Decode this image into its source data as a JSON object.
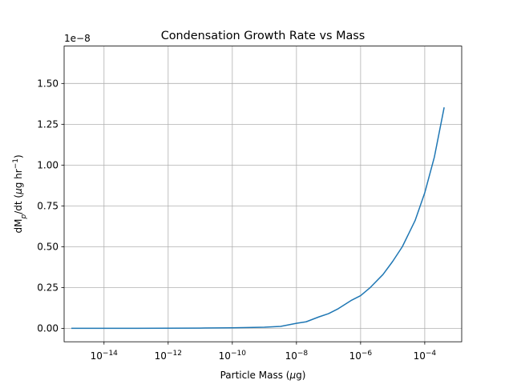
{
  "chart_data": {
    "type": "line",
    "title": "Condensation Growth Rate vs Mass",
    "xlabel": "Particle Mass (μg)",
    "ylabel": "dMp/dt (μg hr−1)",
    "x_scale": "log",
    "y_offset_label": "1e−8",
    "y_multiplier": 1e-08,
    "xlim": [
      5.7e-16,
      0.00142
    ],
    "ylim": [
      -0.0823,
      1.729
    ],
    "grid": true,
    "x_ticks": [
      {
        "value": 1e-14,
        "base": "10",
        "exp": "−14"
      },
      {
        "value": 1e-12,
        "base": "10",
        "exp": "−12"
      },
      {
        "value": 1e-10,
        "base": "10",
        "exp": "−10"
      },
      {
        "value": 1e-08,
        "base": "10",
        "exp": "−8"
      },
      {
        "value": 1e-06,
        "base": "10",
        "exp": "−6"
      },
      {
        "value": 0.0001,
        "base": "10",
        "exp": "−4"
      }
    ],
    "y_ticks": [
      {
        "value": 0.0,
        "label": "0.00"
      },
      {
        "value": 0.25,
        "label": "0.25"
      },
      {
        "value": 0.5,
        "label": "0.50"
      },
      {
        "value": 0.75,
        "label": "0.75"
      },
      {
        "value": 1.0,
        "label": "1.00"
      },
      {
        "value": 1.25,
        "label": "1.25"
      },
      {
        "value": 1.5,
        "label": "1.50"
      }
    ],
    "series": [
      {
        "color": "#1f77b4",
        "x": [
          1e-15,
          1e-14,
          1e-13,
          1e-12,
          1e-11,
          1e-10,
          3.2e-10,
          1e-09,
          3.2e-09,
          1e-08,
          2e-08,
          5e-08,
          1e-07,
          2e-07,
          5e-07,
          1e-06,
          2e-06,
          5e-06,
          1e-05,
          2e-05,
          5e-05,
          0.0001,
          0.0002,
          0.0004
        ],
        "y": [
          0.0,
          0.0001,
          0.0003,
          0.0007,
          0.0015,
          0.0033,
          0.005,
          0.0072,
          0.012,
          0.0306,
          0.04,
          0.07,
          0.09,
          0.12,
          0.17,
          0.2,
          0.25,
          0.33,
          0.41,
          0.5,
          0.66,
          0.83,
          1.05,
          1.35
        ]
      }
    ]
  }
}
